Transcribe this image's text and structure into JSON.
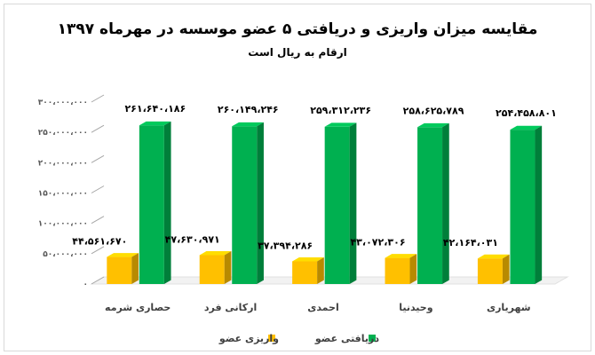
{
  "chart_data": {
    "type": "bar",
    "title": "مقایسه میزان واریزی و دریافتی ۵ عضو موسسه در مهرماه ۱۳۹۷",
    "subtitle": "ارقام به ریال است",
    "categories": [
      "حصاری شرمه",
      "ارکانی فرد",
      "احمدی",
      "وحیدنیا",
      "شهریاری"
    ],
    "ylim": [
      0,
      300000000
    ],
    "yticks": [
      0,
      50000000,
      100000000,
      150000000,
      200000000,
      250000000,
      300000000
    ],
    "ytick_labels": [
      "۰",
      "۵۰،۰۰۰،۰۰۰",
      "۱۰۰،۰۰۰،۰۰۰",
      "۱۵۰،۰۰۰،۰۰۰",
      "۲۰۰،۰۰۰،۰۰۰",
      "۲۵۰،۰۰۰،۰۰۰",
      "۳۰۰،۰۰۰،۰۰۰"
    ],
    "series": [
      {
        "name": "واریزی عضو",
        "color": "#ffc000",
        "values": [
          44561670,
          47630971,
          37394286,
          43072306,
          42164031
        ],
        "labels": [
          "۴۴،۵۶۱،۶۷۰",
          "۴۷،۶۳۰،۹۷۱",
          "۳۷،۳۹۴،۲۸۶",
          "۴۳،۰۷۲،۳۰۶",
          "۴۲،۱۶۴،۰۳۱"
        ]
      },
      {
        "name": "دریافتی عضو",
        "color": "#00b050",
        "values": [
          261640186,
          260149246,
          259312236,
          258625789,
          254458801
        ],
        "labels": [
          "۲۶۱،۶۴۰،۱۸۶",
          "۲۶۰،۱۴۹،۲۴۶",
          "۲۵۹،۳۱۲،۲۳۶",
          "۲۵۸،۶۲۵،۷۸۹",
          "۲۵۴،۴۵۸،۸۰۱"
        ]
      }
    ],
    "legend": "bottom",
    "grid": false
  }
}
